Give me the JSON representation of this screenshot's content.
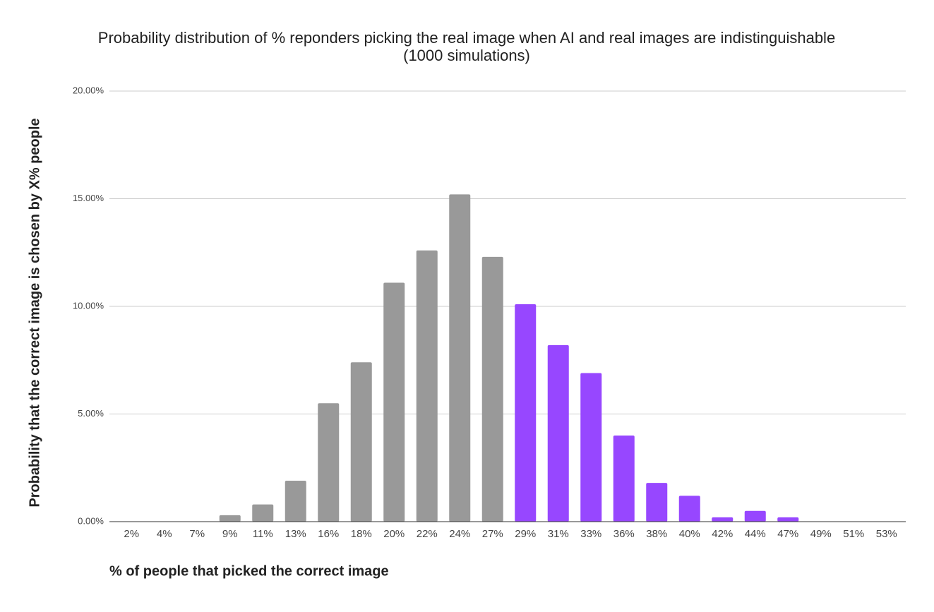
{
  "chart_data": {
    "type": "bar",
    "title": [
      "Probability distribution of % reponders picking the real image when AI and real images are indistinguishable",
      "(1000 simulations)"
    ],
    "x_label": "% of people that picked the correct image",
    "y_label": "Probability that the correct image is chosen by X% people",
    "categories": [
      "2%",
      "4%",
      "7%",
      "9%",
      "11%",
      "13%",
      "16%",
      "18%",
      "20%",
      "22%",
      "24%",
      "27%",
      "29%",
      "31%",
      "33%",
      "36%",
      "38%",
      "40%",
      "42%",
      "44%",
      "47%",
      "49%",
      "51%",
      "53%"
    ],
    "values": [
      0,
      0,
      0,
      0.3,
      0.8,
      1.9,
      5.5,
      7.4,
      11.1,
      12.6,
      15.2,
      12.3,
      10.1,
      8.2,
      6.9,
      4.0,
      1.8,
      1.2,
      0.2,
      0.5,
      0.2,
      0,
      0,
      0
    ],
    "colors": [
      "#999999",
      "#999999",
      "#999999",
      "#999999",
      "#999999",
      "#999999",
      "#999999",
      "#999999",
      "#999999",
      "#999999",
      "#999999",
      "#999999",
      "#9747ff",
      "#9747ff",
      "#9747ff",
      "#9747ff",
      "#9747ff",
      "#9747ff",
      "#9747ff",
      "#9747ff",
      "#9747ff",
      "#9747ff",
      "#9747ff",
      "#9747ff"
    ],
    "ylim": [
      0,
      20
    ],
    "yticks": [
      {
        "value": 0,
        "label": "0.00%"
      },
      {
        "value": 5,
        "label": "5.00%"
      },
      {
        "value": 10,
        "label": "10.00%"
      },
      {
        "value": 15,
        "label": "15.00%"
      },
      {
        "value": 20,
        "label": "20.00%"
      }
    ],
    "grid": true
  }
}
